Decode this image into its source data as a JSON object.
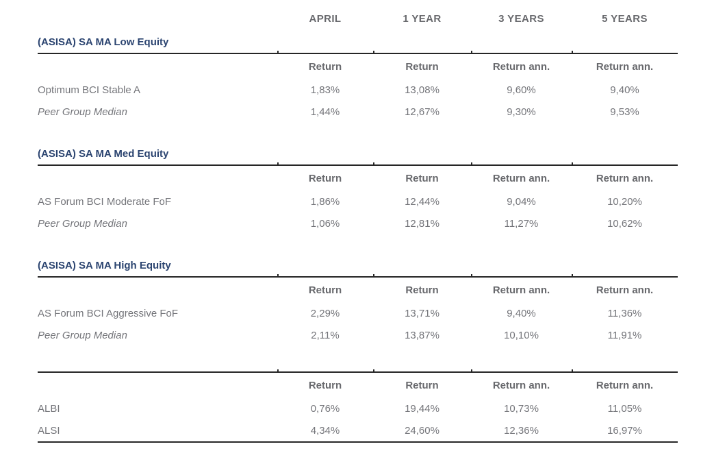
{
  "colors": {
    "section_title": "#2b4470",
    "header_text": "#68696d",
    "body_text": "#74757a",
    "rule": "#262626",
    "background": "#ffffff"
  },
  "columns": [
    "APRIL",
    "1 YEAR",
    "3 YEARS",
    "5 YEARS"
  ],
  "sections": [
    {
      "title": "(ASISA) SA MA Low Equity",
      "sub_headers": [
        "Return",
        "Return",
        "Return ann.",
        "Return ann."
      ],
      "rows": [
        {
          "name": "Optimum BCI Stable A",
          "italic": false,
          "values": [
            "1,83%",
            "13,08%",
            "9,60%",
            "9,40%"
          ]
        },
        {
          "name": "Peer Group Median",
          "italic": true,
          "values": [
            "1,44%",
            "12,67%",
            "9,30%",
            "9,53%"
          ]
        }
      ]
    },
    {
      "title": "(ASISA) SA MA Med Equity",
      "sub_headers": [
        "Return",
        "Return",
        "Return ann.",
        "Return ann."
      ],
      "rows": [
        {
          "name": "AS Forum BCI Moderate FoF",
          "italic": false,
          "values": [
            "1,86%",
            "12,44%",
            "9,04%",
            "10,20%"
          ]
        },
        {
          "name": "Peer Group Median",
          "italic": true,
          "values": [
            "1,06%",
            "12,81%",
            "11,27%",
            "10,62%"
          ]
        }
      ]
    },
    {
      "title": "(ASISA) SA MA High Equity",
      "sub_headers": [
        "Return",
        "Return",
        "Return ann.",
        "Return ann."
      ],
      "rows": [
        {
          "name": "AS Forum BCI Aggressive FoF",
          "italic": false,
          "values": [
            "2,29%",
            "13,71%",
            "9,40%",
            "11,36%"
          ]
        },
        {
          "name": "Peer Group Median",
          "italic": true,
          "values": [
            "2,11%",
            "13,87%",
            "10,10%",
            "11,91%"
          ]
        }
      ]
    },
    {
      "title": "",
      "sub_headers": [
        "Return",
        "Return",
        "Return ann.",
        "Return ann."
      ],
      "rows": [
        {
          "name": "ALBI",
          "italic": false,
          "values": [
            "0,76%",
            "19,44%",
            "10,73%",
            "11,05%"
          ]
        },
        {
          "name": "ALSI",
          "italic": false,
          "values": [
            "4,34%",
            "24,60%",
            "12,36%",
            "16,97%"
          ]
        }
      ]
    }
  ]
}
